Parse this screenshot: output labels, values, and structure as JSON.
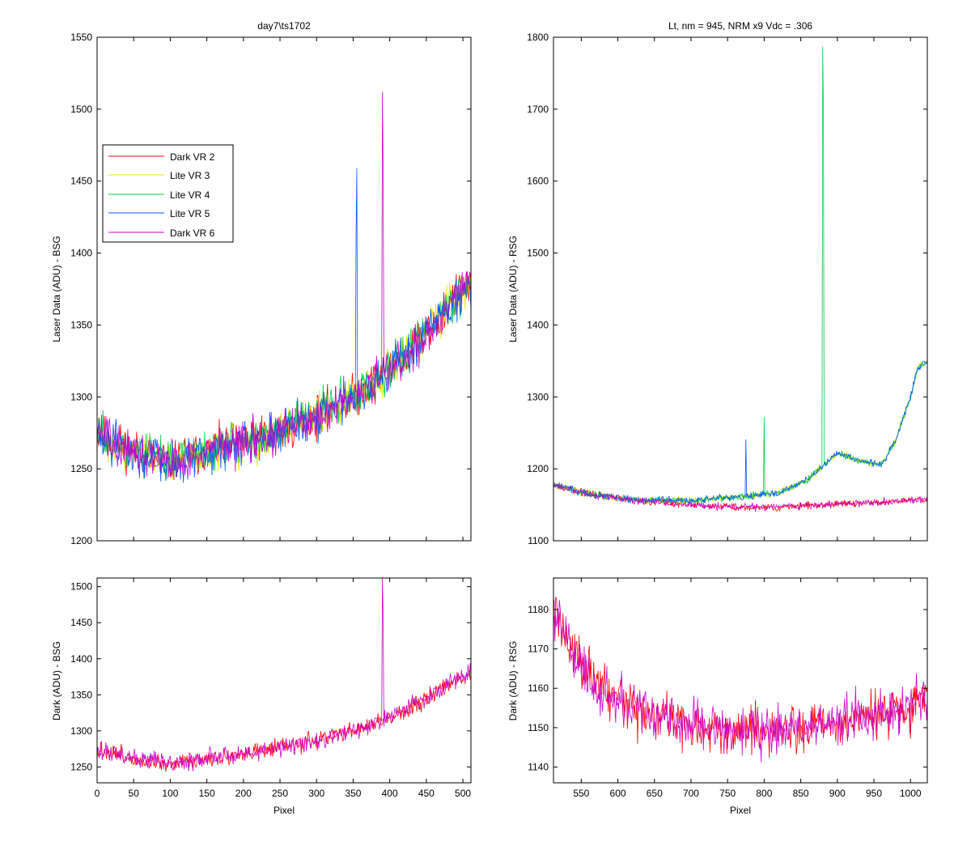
{
  "chart_data": [
    {
      "id": "top-left",
      "type": "line",
      "title": "day7\\ts1702",
      "xlabel": "",
      "ylabel": "Laser Data (ADU) - BSG",
      "xlim": [
        0,
        511
      ],
      "ylim": [
        1200,
        1550
      ],
      "xticks": [
        0,
        50,
        100,
        150,
        200,
        250,
        300,
        350,
        400,
        450,
        500
      ],
      "yticks": [
        1200,
        1250,
        1300,
        1350,
        1400,
        1450,
        1500,
        1550
      ],
      "show_xtick_labels": false,
      "grid": false,
      "legend": {
        "placement": "upper-left",
        "entries": [
          "Dark VR 2",
          "Lite VR 3",
          "Lite VR 4",
          "Lite VR 5",
          "Dark VR 6"
        ]
      },
      "series": [
        {
          "name": "Dark VR 2",
          "color": "#ff0000",
          "baseline": [
            [
              0,
              1275
            ],
            [
              50,
              1262
            ],
            [
              100,
              1255
            ],
            [
              150,
              1262
            ],
            [
              200,
              1268
            ],
            [
              250,
              1276
            ],
            [
              300,
              1287
            ],
            [
              350,
              1300
            ],
            [
              400,
              1318
            ],
            [
              450,
              1345
            ],
            [
              500,
              1375
            ],
            [
              511,
              1380
            ]
          ],
          "noise": 12,
          "spikes": []
        },
        {
          "name": "Lite VR 3",
          "color": "#e6e600",
          "baseline": [
            [
              0,
              1275
            ],
            [
              50,
              1262
            ],
            [
              100,
              1255
            ],
            [
              150,
              1262
            ],
            [
              200,
              1268
            ],
            [
              250,
              1276
            ],
            [
              300,
              1287
            ],
            [
              350,
              1300
            ],
            [
              400,
              1318
            ],
            [
              450,
              1345
            ],
            [
              500,
              1375
            ],
            [
              511,
              1380
            ]
          ],
          "noise": 12,
          "spikes": []
        },
        {
          "name": "Lite VR 4",
          "color": "#00cc44",
          "baseline": [
            [
              0,
              1275
            ],
            [
              50,
              1262
            ],
            [
              100,
              1255
            ],
            [
              150,
              1262
            ],
            [
              200,
              1268
            ],
            [
              250,
              1276
            ],
            [
              300,
              1287
            ],
            [
              350,
              1300
            ],
            [
              400,
              1318
            ],
            [
              450,
              1345
            ],
            [
              500,
              1375
            ],
            [
              511,
              1380
            ]
          ],
          "noise": 12,
          "spikes": []
        },
        {
          "name": "Lite VR 5",
          "color": "#0055ff",
          "baseline": [
            [
              0,
              1275
            ],
            [
              50,
              1262
            ],
            [
              100,
              1255
            ],
            [
              150,
              1262
            ],
            [
              200,
              1268
            ],
            [
              250,
              1276
            ],
            [
              300,
              1287
            ],
            [
              350,
              1300
            ],
            [
              400,
              1318
            ],
            [
              450,
              1345
            ],
            [
              500,
              1375
            ],
            [
              511,
              1380
            ]
          ],
          "noise": 12,
          "spikes": [
            [
              354,
              1412
            ],
            [
              355,
              1459
            ]
          ]
        },
        {
          "name": "Dark VR 6",
          "color": "#cc00cc",
          "baseline": [
            [
              0,
              1275
            ],
            [
              50,
              1262
            ],
            [
              100,
              1255
            ],
            [
              150,
              1262
            ],
            [
              200,
              1268
            ],
            [
              250,
              1276
            ],
            [
              300,
              1287
            ],
            [
              350,
              1300
            ],
            [
              400,
              1318
            ],
            [
              450,
              1345
            ],
            [
              500,
              1375
            ],
            [
              511,
              1380
            ]
          ],
          "noise": 12,
          "spikes": [
            [
              390,
              1512
            ],
            [
              391,
              1455
            ]
          ]
        }
      ]
    },
    {
      "id": "top-right",
      "type": "line",
      "title": "Lt, nm = 945, NRM x9 Vdc = .306",
      "xlabel": "",
      "ylabel": "Laser Data (ADU) - RSG",
      "xlim": [
        512,
        1023
      ],
      "ylim": [
        1100,
        1800
      ],
      "xticks": [
        550,
        600,
        650,
        700,
        750,
        800,
        850,
        900,
        950,
        1000
      ],
      "yticks": [
        1100,
        1200,
        1300,
        1400,
        1500,
        1600,
        1700,
        1800
      ],
      "show_xtick_labels": false,
      "grid": false,
      "series": [
        {
          "name": "Dark VR 2",
          "color": "#ff0000",
          "baseline": [
            [
              512,
              1178
            ],
            [
              560,
              1165
            ],
            [
              620,
              1156
            ],
            [
              700,
              1150
            ],
            [
              760,
              1147
            ],
            [
              820,
              1146
            ],
            [
              880,
              1150
            ],
            [
              950,
              1153
            ],
            [
              1023,
              1158
            ]
          ],
          "noise": 4,
          "spikes": []
        },
        {
          "name": "Lite VR 3",
          "color": "#e6e600",
          "baseline": [
            [
              512,
              1178
            ],
            [
              560,
              1165
            ],
            [
              620,
              1157
            ],
            [
              700,
              1156
            ],
            [
              760,
              1160
            ],
            [
              820,
              1167
            ],
            [
              860,
              1185
            ],
            [
              900,
              1222
            ],
            [
              930,
              1212
            ],
            [
              960,
              1205
            ],
            [
              980,
              1240
            ],
            [
              1000,
              1300
            ],
            [
              1010,
              1340
            ],
            [
              1023,
              1350
            ]
          ],
          "noise": 4,
          "spikes": []
        },
        {
          "name": "Lite VR 4",
          "color": "#00cc44",
          "baseline": [
            [
              512,
              1178
            ],
            [
              560,
              1165
            ],
            [
              620,
              1157
            ],
            [
              700,
              1156
            ],
            [
              760,
              1160
            ],
            [
              820,
              1167
            ],
            [
              860,
              1185
            ],
            [
              900,
              1222
            ],
            [
              930,
              1212
            ],
            [
              960,
              1205
            ],
            [
              980,
              1240
            ],
            [
              1000,
              1300
            ],
            [
              1010,
              1340
            ],
            [
              1023,
              1350
            ]
          ],
          "noise": 4,
          "spikes": [
            [
              800,
              1272
            ],
            [
              880,
              1787
            ],
            [
              881,
              1695
            ]
          ]
        },
        {
          "name": "Lite VR 5",
          "color": "#0055ff",
          "baseline": [
            [
              512,
              1178
            ],
            [
              560,
              1165
            ],
            [
              620,
              1157
            ],
            [
              700,
              1156
            ],
            [
              760,
              1160
            ],
            [
              820,
              1167
            ],
            [
              860,
              1185
            ],
            [
              900,
              1222
            ],
            [
              930,
              1212
            ],
            [
              960,
              1205
            ],
            [
              980,
              1240
            ],
            [
              1000,
              1300
            ],
            [
              1010,
              1340
            ],
            [
              1023,
              1350
            ]
          ],
          "noise": 4,
          "spikes": [
            [
              775,
              1241
            ]
          ]
        },
        {
          "name": "Dark VR 6",
          "color": "#cc00cc",
          "baseline": [
            [
              512,
              1178
            ],
            [
              560,
              1165
            ],
            [
              620,
              1156
            ],
            [
              700,
              1150
            ],
            [
              760,
              1147
            ],
            [
              820,
              1146
            ],
            [
              880,
              1150
            ],
            [
              950,
              1153
            ],
            [
              1023,
              1158
            ]
          ],
          "noise": 4,
          "spikes": []
        }
      ]
    },
    {
      "id": "bottom-left",
      "type": "line",
      "title": "",
      "xlabel": "Pixel",
      "ylabel": "Dark (ADU) - BSG",
      "xlim": [
        0,
        511
      ],
      "ylim": [
        1228,
        1512
      ],
      "xticks": [
        0,
        50,
        100,
        150,
        200,
        250,
        300,
        350,
        400,
        450,
        500
      ],
      "yticks": [
        1250,
        1300,
        1350,
        1400,
        1450,
        1500
      ],
      "show_xtick_labels": true,
      "grid": false,
      "series": [
        {
          "name": "Dark VR 2",
          "color": "#ff0000",
          "baseline": [
            [
              0,
              1275
            ],
            [
              50,
              1262
            ],
            [
              100,
              1255
            ],
            [
              150,
              1262
            ],
            [
              200,
              1268
            ],
            [
              250,
              1276
            ],
            [
              300,
              1287
            ],
            [
              350,
              1300
            ],
            [
              400,
              1318
            ],
            [
              450,
              1345
            ],
            [
              500,
              1375
            ],
            [
              511,
              1380
            ]
          ],
          "noise": 10,
          "spikes": []
        },
        {
          "name": "Dark VR 6",
          "color": "#cc00cc",
          "baseline": [
            [
              0,
              1275
            ],
            [
              50,
              1262
            ],
            [
              100,
              1255
            ],
            [
              150,
              1262
            ],
            [
              200,
              1268
            ],
            [
              250,
              1276
            ],
            [
              300,
              1287
            ],
            [
              350,
              1300
            ],
            [
              400,
              1318
            ],
            [
              450,
              1345
            ],
            [
              500,
              1375
            ],
            [
              511,
              1380
            ]
          ],
          "noise": 10,
          "spikes": [
            [
              390,
              1512
            ],
            [
              391,
              1455
            ]
          ]
        }
      ]
    },
    {
      "id": "bottom-right",
      "type": "line",
      "title": "",
      "xlabel": "Pixel",
      "ylabel": "Dark (ADU) - RSG",
      "xlim": [
        512,
        1023
      ],
      "ylim": [
        1136,
        1188
      ],
      "xticks": [
        550,
        600,
        650,
        700,
        750,
        800,
        850,
        900,
        950,
        1000
      ],
      "yticks": [
        1140,
        1150,
        1160,
        1170,
        1180
      ],
      "show_xtick_labels": true,
      "grid": false,
      "series": [
        {
          "name": "Dark VR 2",
          "color": "#ff0000",
          "baseline": [
            [
              512,
              1180
            ],
            [
              540,
              1168
            ],
            [
              580,
              1160
            ],
            [
              620,
              1155
            ],
            [
              660,
              1152
            ],
            [
              700,
              1151
            ],
            [
              760,
              1149
            ],
            [
              820,
              1149
            ],
            [
              880,
              1151
            ],
            [
              950,
              1153
            ],
            [
              1000,
              1155
            ],
            [
              1023,
              1158
            ]
          ],
          "noise": 5,
          "spikes": []
        },
        {
          "name": "Dark VR 6",
          "color": "#cc00cc",
          "baseline": [
            [
              512,
              1180
            ],
            [
              540,
              1168
            ],
            [
              580,
              1160
            ],
            [
              620,
              1155
            ],
            [
              660,
              1152
            ],
            [
              700,
              1151
            ],
            [
              760,
              1149
            ],
            [
              820,
              1149
            ],
            [
              880,
              1151
            ],
            [
              950,
              1153
            ],
            [
              1000,
              1155
            ],
            [
              1023,
              1158
            ]
          ],
          "noise": 5,
          "spikes": []
        }
      ]
    }
  ]
}
